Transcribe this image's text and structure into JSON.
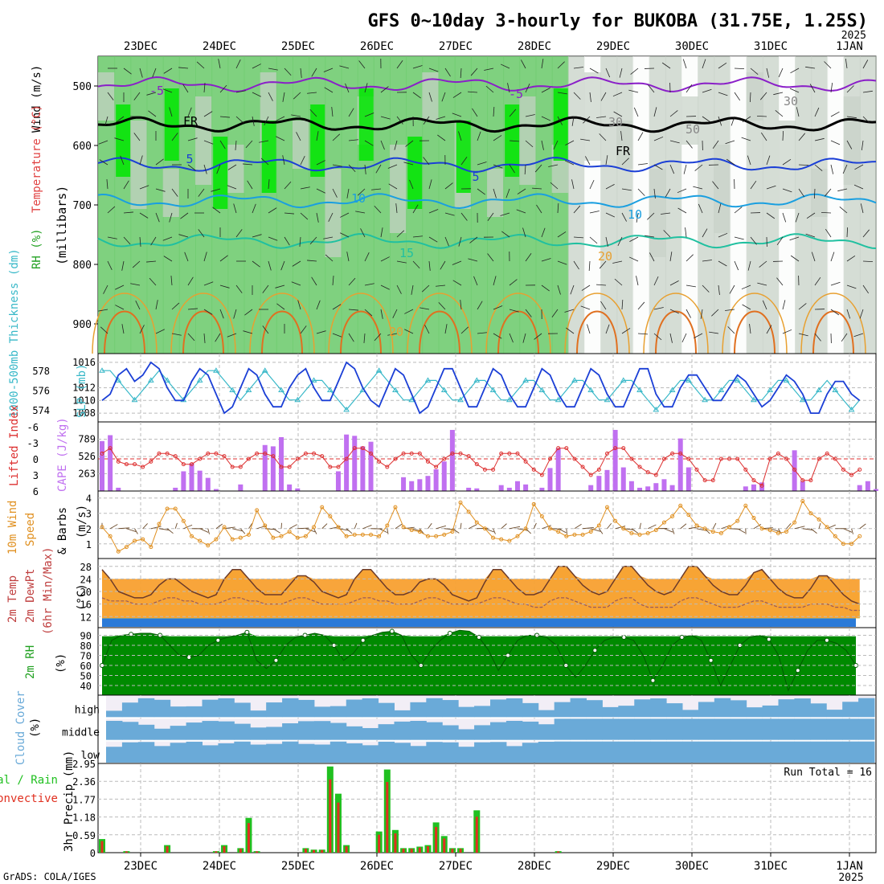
{
  "title": "GFS 0~10day 3-hourly for BUKOBA (31.75E, 1.25S)",
  "year_label": "2025",
  "footer": "GrADS: COLA/IGES",
  "date_labels": [
    "23DEC",
    "24DEC",
    "25DEC",
    "26DEC",
    "27DEC",
    "28DEC",
    "29DEC",
    "30DEC",
    "31DEC",
    "1JAN"
  ],
  "colors": {
    "rh_light": "#c8d2c8",
    "rh_mid": "#72cc72",
    "rh_bright": "#00e600",
    "bg_panel": "#e9f3e9",
    "slp": "#1b3fd6",
    "thickness": "#38b8c8",
    "cape_bar": "#c070f0",
    "lifted": "#dd3030",
    "wind": "#e09020",
    "rain_total": "#20c020",
    "rain_conv": "#e03020",
    "cloud": "#6aaad8"
  },
  "panels": {
    "upper": {
      "left_label_parts": [
        "RH (%)",
        "Temperature (°C)",
        "Wind (m/s)"
      ],
      "axis_label": "(millibars)",
      "yticks": [
        "500",
        "600",
        "700",
        "800",
        "900"
      ],
      "contour_labels": {
        "t_m5": "-5",
        "t_m5b": "-5",
        "fr": "FR",
        "fr2": "FR",
        "t5": "5",
        "t5b": "5",
        "t10": "10",
        "t10b": "10",
        "t15": "15",
        "t20": "20",
        "t20b": "20",
        "rh30": "30",
        "rh50": "50",
        "rh30b": "30"
      }
    },
    "slp": {
      "label_left": "1000-500mb Thickness (dm)",
      "label_right": "SLP (mb)",
      "left_ticks": [
        "578",
        "576",
        "574"
      ],
      "right_ticks": [
        "1016",
        "1012",
        "1010",
        "1008"
      ]
    },
    "cape": {
      "label_left": "Lifted Index",
      "label_right": "CAPE (J/kg)",
      "left_ticks": [
        "-6",
        "-3",
        "0",
        "3",
        "6"
      ],
      "right_ticks": [
        "789",
        "526",
        "263"
      ]
    },
    "wind10": {
      "label1": "10m Wind",
      "label2": "Speed",
      "label3": "& Barbs",
      "label4": "(m/s)",
      "ticks": [
        "4",
        "3",
        "2",
        "1"
      ]
    },
    "temp2m": {
      "label1": "2m Temp",
      "label2": "2m DewPt",
      "label3": "(6hr Min/Max)",
      "label4": "(°C)",
      "ticks": [
        "28",
        "24",
        "20",
        "16",
        "12"
      ]
    },
    "rh2m": {
      "label1": "2m RH",
      "label2": "(%)",
      "ticks": [
        "90",
        "80",
        "70",
        "60",
        "50",
        "40"
      ]
    },
    "cloud": {
      "label1": "Cloud Cover",
      "label2": "(%)",
      "rows": [
        "high",
        "middle",
        "low"
      ]
    },
    "precip": {
      "label1": "Total / Rain",
      "label2": "Convective",
      "label3": "3hr Precip (mm)",
      "ticks": [
        "2.95",
        "2.36",
        "1.77",
        "1.18",
        "0.59",
        "0"
      ],
      "run_total": "Run Total = 16"
    }
  },
  "chart_data": {
    "type": "line",
    "time_step_hours": 3,
    "start_offset_steps": 0,
    "slp_mb": [
      1010,
      1011,
      1014,
      1015,
      1013,
      1014,
      1016,
      1015,
      1012,
      1010,
      1010,
      1013,
      1015,
      1014,
      1011,
      1008,
      1009,
      1012,
      1015,
      1014,
      1011,
      1009,
      1009,
      1012,
      1014,
      1015,
      1012,
      1010,
      1010,
      1013,
      1016,
      1015,
      1012,
      1010,
      1009,
      1012,
      1015,
      1014,
      1011,
      1008,
      1009,
      1012,
      1015,
      1015,
      1012,
      1009,
      1009,
      1012,
      1015,
      1014,
      1011,
      1009,
      1009,
      1012,
      1015,
      1014,
      1011,
      1009,
      1009,
      1012,
      1015,
      1014,
      1011,
      1009,
      1009,
      1012,
      1015,
      1015,
      1011,
      1009,
      1009,
      1012,
      1014,
      1014,
      1012,
      1010,
      1010,
      1012,
      1014,
      1013,
      1011,
      1009,
      1010,
      1012,
      1014,
      1013,
      1011,
      1008,
      1008,
      1011,
      1013,
      1013,
      1011,
      1010
    ],
    "thickness_dm": [
      578,
      578,
      577,
      576,
      575,
      576,
      577,
      578,
      577,
      576,
      575,
      576,
      577,
      578,
      578,
      577,
      576,
      575,
      576,
      577,
      578,
      577,
      576,
      575,
      575,
      576,
      577,
      577,
      576,
      575,
      574,
      575,
      576,
      577,
      578,
      577,
      576,
      575,
      575,
      576,
      577,
      577,
      576,
      575,
      575,
      576,
      577,
      577,
      576,
      575,
      575,
      576,
      577,
      577,
      576,
      575,
      575,
      576,
      577,
      577,
      576,
      575,
      575,
      576,
      577,
      577,
      576,
      575,
      574,
      575,
      576,
      577,
      577,
      576,
      575,
      575,
      576,
      577,
      577,
      576,
      575,
      575,
      576,
      577,
      577,
      576,
      575,
      575,
      576,
      577,
      576,
      575,
      574,
      575
    ],
    "cape": [
      760,
      850,
      50,
      0,
      0,
      0,
      0,
      0,
      0,
      50,
      300,
      420,
      310,
      200,
      30,
      0,
      0,
      100,
      0,
      0,
      700,
      680,
      820,
      100,
      40,
      0,
      0,
      0,
      0,
      300,
      860,
      840,
      680,
      750,
      0,
      0,
      0,
      210,
      150,
      180,
      230,
      330,
      450,
      930,
      0,
      50,
      40,
      0,
      0,
      90,
      50,
      150,
      100,
      0,
      50,
      350,
      650,
      0,
      0,
      0,
      90,
      230,
      320,
      930,
      360,
      150,
      50,
      70,
      120,
      180,
      90,
      800,
      360,
      0,
      0,
      0,
      0,
      0,
      0,
      70,
      100,
      130,
      0,
      0,
      0,
      620,
      150,
      0,
      0,
      0,
      0,
      0,
      0,
      90,
      150,
      30
    ],
    "lifted_index": [
      -1,
      -2,
      0.5,
      1,
      1,
      1.5,
      0.5,
      -1,
      -1,
      -0.5,
      1,
      1,
      0,
      -1,
      -1,
      -0.5,
      1.5,
      1.5,
      0,
      -1,
      -1,
      -0.5,
      1.5,
      1.5,
      0,
      -1,
      -1,
      -0.5,
      1.5,
      1.5,
      0,
      -2,
      -2,
      -1,
      0.5,
      1.5,
      0,
      -1,
      -1,
      -1,
      0.5,
      1.5,
      0,
      -1,
      -1,
      -0.5,
      1,
      2,
      2,
      -1,
      -1,
      -1,
      0.5,
      2,
      3,
      0,
      -2,
      -2,
      0,
      1.5,
      3,
      2,
      -1,
      -2,
      -2,
      0,
      1.5,
      2.5,
      3,
      0,
      -1,
      -1,
      0,
      2,
      4,
      4,
      0,
      0,
      0,
      2,
      4,
      5,
      0,
      -1,
      0,
      2,
      4,
      4,
      0,
      -1,
      0,
      2,
      3,
      2
    ],
    "wind10_ms": [
      2.1,
      1.5,
      0.5,
      0.8,
      1.2,
      1.3,
      0.8,
      2.3,
      3.3,
      3.3,
      2.5,
      1.5,
      1.2,
      0.9,
      1.3,
      2.1,
      1.3,
      1.4,
      1.6,
      3.2,
      2.2,
      1.4,
      1.5,
      1.8,
      1.4,
      1.5,
      2.1,
      3.4,
      2.8,
      2.1,
      1.5,
      1.6,
      1.6,
      1.6,
      1.5,
      2.2,
      3.4,
      2.1,
      1.9,
      1.8,
      1.5,
      1.5,
      1.6,
      1.8,
      3.7,
      3.1,
      2.4,
      2.0,
      1.4,
      1.3,
      1.2,
      1.5,
      2.0,
      3.6,
      2.8,
      2.0,
      1.8,
      1.5,
      1.6,
      1.6,
      1.8,
      2.2,
      3.4,
      2.5,
      2.0,
      1.7,
      1.6,
      1.7,
      1.9,
      2.4,
      2.8,
      3.5,
      2.9,
      2.2,
      2.0,
      1.8,
      1.7,
      2.1,
      2.5,
      3.5,
      2.7,
      2.0,
      1.9,
      1.7,
      1.8,
      2.4,
      3.8,
      3.0,
      2.6,
      2.1,
      1.5,
      1.0,
      1.0,
      1.5
    ],
    "temp2m_c": [
      27,
      24,
      20,
      19,
      18,
      18,
      19,
      22,
      24,
      24,
      22,
      20,
      19,
      18,
      19,
      24,
      27,
      27,
      24,
      21,
      19,
      19,
      19,
      22,
      25,
      25,
      23,
      20,
      19,
      18,
      19,
      24,
      27,
      27,
      24,
      21,
      19,
      19,
      20,
      23,
      24,
      24,
      22,
      19,
      18,
      17,
      18,
      23,
      27,
      27,
      24,
      21,
      19,
      19,
      20,
      24,
      28,
      28,
      25,
      22,
      20,
      19,
      20,
      24,
      28,
      28,
      25,
      22,
      20,
      19,
      20,
      24,
      28,
      28,
      25,
      22,
      20,
      19,
      19,
      22,
      26,
      27,
      24,
      21,
      19,
      18,
      18,
      21,
      25,
      25,
      22,
      19,
      17,
      16
    ],
    "dewpoint2m_c": [
      18,
      17,
      17,
      17,
      16,
      16,
      16,
      17,
      18,
      18,
      17,
      17,
      16,
      16,
      16,
      17,
      18,
      18,
      17,
      17,
      16,
      16,
      16,
      17,
      18,
      18,
      17,
      16,
      16,
      16,
      16,
      17,
      18,
      18,
      17,
      17,
      16,
      16,
      16,
      17,
      18,
      18,
      17,
      16,
      16,
      16,
      16,
      17,
      18,
      18,
      17,
      16,
      16,
      15,
      15,
      17,
      18,
      18,
      17,
      16,
      15,
      15,
      15,
      17,
      18,
      18,
      16,
      15,
      15,
      15,
      15,
      17,
      18,
      18,
      17,
      16,
      15,
      15,
      15,
      16,
      17,
      17,
      16,
      15,
      15,
      15,
      15,
      16,
      16,
      16,
      15,
      15,
      14,
      14
    ],
    "rh2m_pct": [
      60,
      85,
      90,
      91,
      92,
      92,
      90,
      80,
      70,
      68,
      70,
      80,
      85,
      88,
      90,
      93,
      65,
      57,
      65,
      80,
      88,
      90,
      92,
      90,
      80,
      65,
      72,
      85,
      90,
      93,
      94,
      90,
      70,
      60,
      75,
      85,
      92,
      95,
      94,
      88,
      75,
      55,
      70,
      85,
      90,
      90,
      88,
      80,
      60,
      48,
      60,
      75,
      85,
      88,
      88,
      85,
      70,
      45,
      60,
      80,
      88,
      90,
      85,
      65,
      40,
      60,
      80,
      88,
      90,
      86,
      70,
      35,
      55,
      75,
      85,
      85,
      82,
      75,
      60
    ],
    "precip_total_mm": [
      0.45,
      0,
      0,
      0.05,
      0,
      0,
      0,
      0,
      0.25,
      0,
      0,
      0,
      0,
      0,
      0.05,
      0.25,
      0,
      0.15,
      1.15,
      0.05,
      0,
      0,
      0,
      0,
      0,
      0.15,
      0.1,
      0.1,
      2.85,
      1.95,
      0.25,
      0,
      0,
      0,
      0.7,
      2.75,
      0.75,
      0.15,
      0.15,
      0.2,
      0.25,
      1,
      0.55,
      0.15,
      0.15,
      0,
      1.4,
      0,
      0,
      0,
      0,
      0,
      0,
      0,
      0,
      0,
      0.05,
      0,
      0,
      0,
      0,
      0,
      0,
      0,
      0,
      0,
      0,
      0,
      0,
      0,
      0,
      0,
      0,
      0,
      0,
      0,
      0,
      0,
      0,
      0,
      0,
      0,
      0,
      0,
      0,
      0,
      0,
      0,
      0,
      0,
      0,
      0,
      0,
      0
    ],
    "xlabel": "",
    "ylabel": ""
  }
}
